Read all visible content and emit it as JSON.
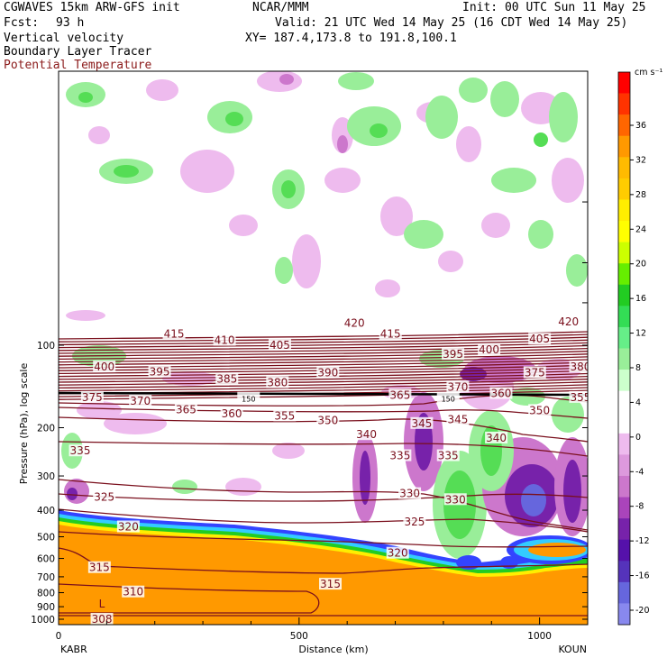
{
  "header": {
    "model": "CGWAVES 15km ARW-GFS init",
    "center": "NCAR/MMM",
    "init": "Init: 00 UTC Sun 11 May 25",
    "fcst_label": "Fcst:",
    "fcst_value": "93 h",
    "valid": "Valid: 21 UTC Wed 14 May 25 (16 CDT Wed 14 May 25)",
    "xy": "XY= 187.4,173.8 to 191.8,100.1",
    "field1": "Vertical velocity",
    "field2": "Boundary Layer Tracer",
    "field3": "Potential Temperature"
  },
  "colors": {
    "theta": "#7a0f1c",
    "field3_label": "#8b1a1a",
    "orange": "#ff9900",
    "up_light": "#99ee99",
    "up_mid": "#55dd55",
    "down_light": "#eebbee",
    "down_mid": "#cc77cc",
    "down_dark": "#7722aa",
    "down_deep": "#5533bb",
    "blue": "#3344ff",
    "cyan": "#33ccff",
    "green": "#22cc22",
    "yellow": "#ffee00"
  },
  "chart_data": {
    "type": "cross-section",
    "ylabel": "Pressure (hPa), log scale",
    "xlabel": "Distance (km)",
    "y_scale": "log",
    "y_ticks": [
      100,
      200,
      300,
      400,
      500,
      600,
      700,
      800,
      900,
      1000
    ],
    "x_ticks": [
      0,
      500,
      1000
    ],
    "xlim": [
      0,
      1100
    ],
    "start_label": "KABR",
    "end_label": "KOUN",
    "colorbar": {
      "units": "cm s⁻¹",
      "labels": [
        36,
        32,
        28,
        24,
        20,
        16,
        12,
        8,
        4,
        0,
        -4,
        -8,
        -12,
        -16,
        -20
      ],
      "colors": [
        "#ff0000",
        "#ff3300",
        "#ff6600",
        "#ff9900",
        "#ffbb00",
        "#ffcc00",
        "#ffee00",
        "#ffff00",
        "#ccff00",
        "#66ee00",
        "#22cc22",
        "#33dd55",
        "#66ee88",
        "#99ee99",
        "#ccffcc",
        "#ffffff",
        "#ffffff",
        "#eebbee",
        "#dd99dd",
        "#cc77cc",
        "#aa44bb",
        "#7722aa",
        "#5511aa",
        "#5533bb",
        "#6666dd",
        "#8888ee"
      ]
    },
    "theta_labels": [
      {
        "text": "420",
        "x": 615,
        "p": 83
      },
      {
        "text": "420",
        "x": 1060,
        "p": 82
      },
      {
        "text": "415",
        "x": 240,
        "p": 91
      },
      {
        "text": "415",
        "x": 690,
        "p": 91
      },
      {
        "text": "410",
        "x": 345,
        "p": 96
      },
      {
        "text": "405",
        "x": 460,
        "p": 100
      },
      {
        "text": "405",
        "x": 1000,
        "p": 95
      },
      {
        "text": "400",
        "x": 95,
        "p": 120
      },
      {
        "text": "400",
        "x": 895,
        "p": 104
      },
      {
        "text": "395",
        "x": 210,
        "p": 125
      },
      {
        "text": "395",
        "x": 820,
        "p": 108
      },
      {
        "text": "390",
        "x": 560,
        "p": 126
      },
      {
        "text": "385",
        "x": 350,
        "p": 133
      },
      {
        "text": "380",
        "x": 455,
        "p": 137
      },
      {
        "text": "380",
        "x": 1085,
        "p": 120
      },
      {
        "text": "375",
        "x": 70,
        "p": 155
      },
      {
        "text": "375",
        "x": 990,
        "p": 126
      },
      {
        "text": "370",
        "x": 170,
        "p": 160
      },
      {
        "text": "370",
        "x": 830,
        "p": 142
      },
      {
        "text": "365",
        "x": 265,
        "p": 172
      },
      {
        "text": "365",
        "x": 710,
        "p": 152
      },
      {
        "text": "360",
        "x": 360,
        "p": 178
      },
      {
        "text": "360",
        "x": 920,
        "p": 150
      },
      {
        "text": "355",
        "x": 470,
        "p": 181
      },
      {
        "text": "355",
        "x": 1085,
        "p": 155
      },
      {
        "text": "350",
        "x": 560,
        "p": 188
      },
      {
        "text": "350",
        "x": 1000,
        "p": 173
      },
      {
        "text": "345",
        "x": 755,
        "p": 193
      },
      {
        "text": "345",
        "x": 830,
        "p": 187
      },
      {
        "text": "340",
        "x": 640,
        "p": 212
      },
      {
        "text": "340",
        "x": 910,
        "p": 218
      },
      {
        "text": "335",
        "x": 45,
        "p": 243
      },
      {
        "text": "335",
        "x": 710,
        "p": 253
      },
      {
        "text": "335",
        "x": 810,
        "p": 253
      },
      {
        "text": "330",
        "x": 730,
        "p": 348
      },
      {
        "text": "330",
        "x": 825,
        "p": 366
      },
      {
        "text": "325",
        "x": 95,
        "p": 358
      },
      {
        "text": "325",
        "x": 740,
        "p": 442
      },
      {
        "text": "320",
        "x": 145,
        "p": 460
      },
      {
        "text": "320",
        "x": 705,
        "p": 574
      },
      {
        "text": "315",
        "x": 85,
        "p": 648
      },
      {
        "text": "315",
        "x": 565,
        "p": 745
      },
      {
        "text": "310",
        "x": 155,
        "p": 795
      },
      {
        "text": "308",
        "x": 90,
        "p": 1000
      },
      {
        "text": "150",
        "x": 395,
        "p": 156
      },
      {
        "text": "150",
        "x": 810,
        "p": 156
      },
      {
        "text": "L",
        "x": 90,
        "p": 880
      }
    ]
  }
}
